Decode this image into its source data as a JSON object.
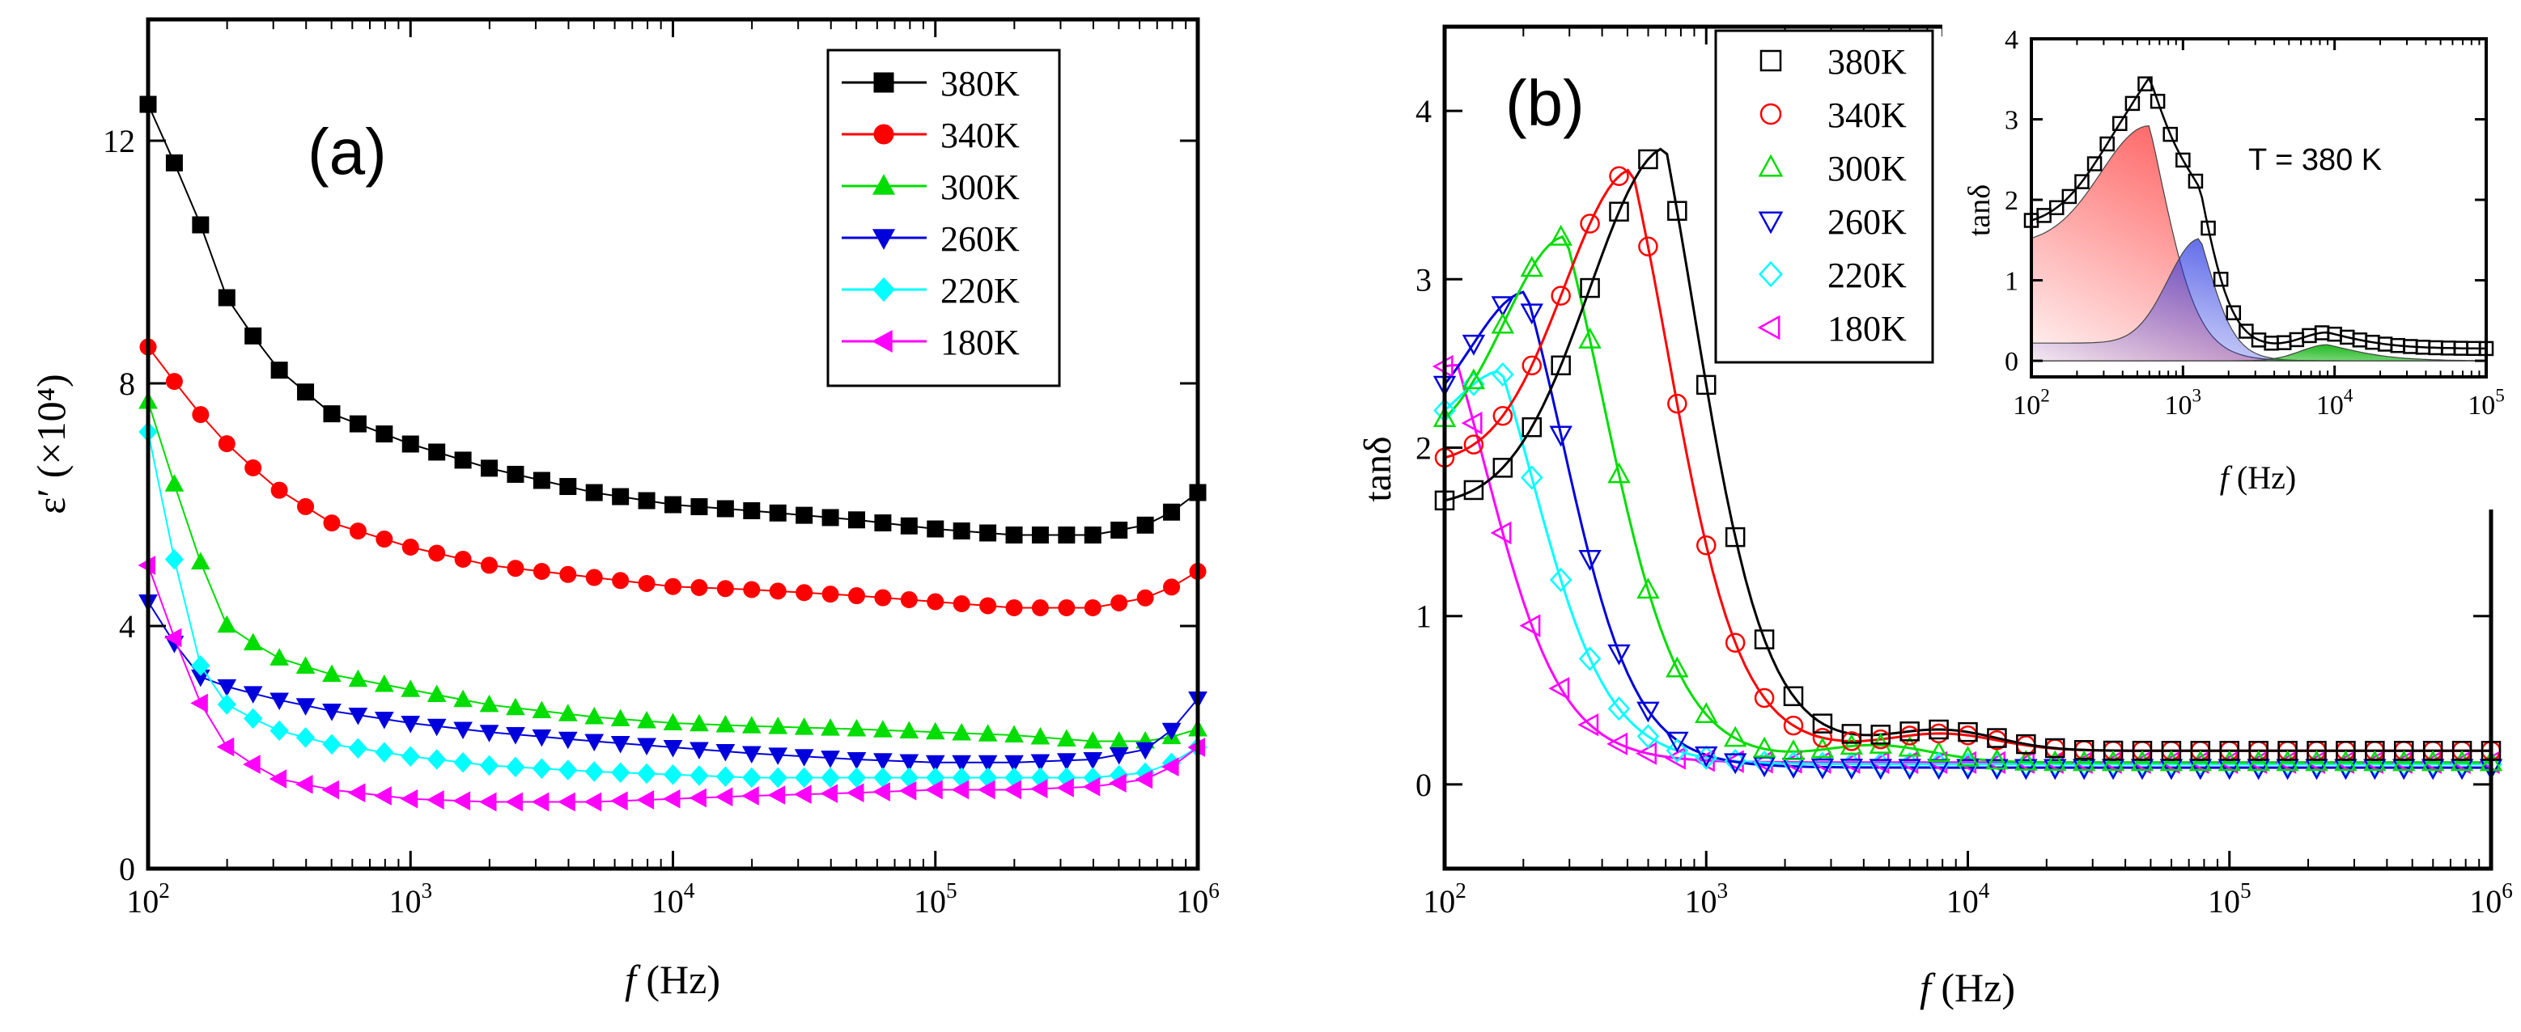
{
  "figure": {
    "panel_a_label": "(a)",
    "panel_b_label": "(b)",
    "inset_annotation": "T = 380 K"
  },
  "chart_data": [
    {
      "id": "a",
      "type": "line",
      "title": "(a)",
      "xlabel_italic": "f",
      "xlabel_rest": " (Hz)",
      "ylabel": "ε′ (×10⁴)",
      "xscale": "log",
      "xlim": [
        100,
        1000000
      ],
      "ylim": [
        0,
        14
      ],
      "xticks": [
        {
          "value": 100,
          "base": "10",
          "exp": "2"
        },
        {
          "value": 1000,
          "base": "10",
          "exp": "3"
        },
        {
          "value": 10000,
          "base": "10",
          "exp": "4"
        },
        {
          "value": 100000,
          "base": "10",
          "exp": "5"
        },
        {
          "value": 1000000,
          "base": "10",
          "exp": "6"
        }
      ],
      "yticks": [
        {
          "value": 0,
          "label": "0"
        },
        {
          "value": 4,
          "label": "4"
        },
        {
          "value": 8,
          "label": "8"
        },
        {
          "value": 12,
          "label": "12"
        }
      ],
      "legend_position": "top-right",
      "x": [
        100,
        150,
        200,
        300,
        500,
        1000,
        2000,
        5000,
        10000,
        20000,
        50000,
        100000,
        200000,
        400000,
        700000,
        1000000
      ],
      "series": [
        {
          "name": "380K",
          "color": "#000000",
          "marker": "square",
          "values": [
            12.6,
            10.9,
            9.4,
            8.3,
            7.5,
            7.0,
            6.6,
            6.2,
            6.0,
            5.9,
            5.75,
            5.6,
            5.5,
            5.5,
            5.7,
            6.2
          ]
        },
        {
          "name": "340K",
          "color": "#ff0000",
          "marker": "circle",
          "values": [
            8.6,
            7.6,
            7.0,
            6.3,
            5.7,
            5.3,
            5.0,
            4.8,
            4.65,
            4.6,
            4.5,
            4.4,
            4.3,
            4.3,
            4.5,
            4.9
          ]
        },
        {
          "name": "300K",
          "color": "#00dd00",
          "marker": "triangle-up",
          "values": [
            7.7,
            5.3,
            4.0,
            3.5,
            3.2,
            2.95,
            2.7,
            2.5,
            2.4,
            2.35,
            2.3,
            2.25,
            2.2,
            2.1,
            2.1,
            2.3
          ]
        },
        {
          "name": "260K",
          "color": "#0000dd",
          "marker": "triangle-down",
          "values": [
            4.4,
            3.2,
            3.0,
            2.8,
            2.6,
            2.4,
            2.25,
            2.1,
            2.0,
            1.9,
            1.8,
            1.75,
            1.75,
            1.8,
            2.0,
            2.8
          ]
        },
        {
          "name": "220K",
          "color": "#00ffff",
          "marker": "diamond",
          "values": [
            7.2,
            3.5,
            2.7,
            2.3,
            2.05,
            1.85,
            1.7,
            1.6,
            1.55,
            1.5,
            1.5,
            1.5,
            1.5,
            1.5,
            1.6,
            2.0
          ]
        },
        {
          "name": "180K",
          "color": "#ff00ff",
          "marker": "triangle-left",
          "values": [
            5.0,
            2.9,
            2.0,
            1.5,
            1.3,
            1.15,
            1.1,
            1.1,
            1.15,
            1.2,
            1.25,
            1.3,
            1.3,
            1.35,
            1.5,
            2.0
          ]
        }
      ]
    },
    {
      "id": "b",
      "type": "scatter",
      "title": "(b)",
      "xlabel_italic": "f",
      "xlabel_rest": " (Hz)",
      "ylabel": "tanδ",
      "xscale": "log",
      "xlim": [
        100,
        1000000
      ],
      "ylim": [
        -0.5,
        4.5
      ],
      "xticks": [
        {
          "value": 100,
          "base": "10",
          "exp": "2"
        },
        {
          "value": 1000,
          "base": "10",
          "exp": "3"
        },
        {
          "value": 10000,
          "base": "10",
          "exp": "4"
        },
        {
          "value": 100000,
          "base": "10",
          "exp": "5"
        },
        {
          "value": 1000000,
          "base": "10",
          "exp": "6"
        }
      ],
      "yticks": [
        {
          "value": 0,
          "label": "0"
        },
        {
          "value": 1,
          "label": "1"
        },
        {
          "value": 2,
          "label": "2"
        },
        {
          "value": 3,
          "label": "3"
        },
        {
          "value": 4,
          "label": "4"
        }
      ],
      "legend_position": "top-center",
      "series": [
        {
          "name": "380K",
          "color": "#000000",
          "marker": "square",
          "peak_f": 700,
          "peak": 3.72,
          "base": 1.65,
          "tail": 0.2,
          "w": 0.42,
          "dstart": 2.95,
          "dw": 0.14,
          "bump_f": 8000,
          "bump": 0.12
        },
        {
          "name": "340K",
          "color": "#ff0000",
          "marker": "circle",
          "peak_f": 520,
          "peak": 3.6,
          "base": 1.9,
          "tail": 0.2,
          "w": 0.37,
          "dstart": 2.85,
          "dw": 0.14,
          "bump_f": 8000,
          "bump": 0.1
        },
        {
          "name": "300K",
          "color": "#00dd00",
          "marker": "triangle-up",
          "peak_f": 290,
          "peak": 3.22,
          "base": 2.0,
          "tail": 0.13,
          "w": 0.33,
          "dstart": 2.6,
          "dw": 0.15,
          "bump_f": 4500,
          "bump": 0.1
        },
        {
          "name": "260K",
          "color": "#0000dd",
          "marker": "triangle-down",
          "peak_f": 205,
          "peak": 2.9,
          "base": 2.1,
          "tail": 0.1,
          "w": 0.3,
          "dstart": 2.45,
          "dw": 0.14,
          "bump_f": 0,
          "bump": 0
        },
        {
          "name": "220K",
          "color": "#00ffff",
          "marker": "diamond",
          "peak_f": 165,
          "peak": 2.42,
          "base": 2.0,
          "tail": 0.12,
          "w": 0.26,
          "dstart": 2.33,
          "dw": 0.15,
          "bump_f": 0,
          "bump": 0
        },
        {
          "name": "180K",
          "color": "#ff00ff",
          "marker": "triangle-left",
          "peak_f": 112,
          "peak": 2.45,
          "base": 2.4,
          "tail": 0.13,
          "w": 0.22,
          "dstart": 2.15,
          "dw": 0.15,
          "bump_f": 0,
          "bump": 0
        }
      ]
    },
    {
      "id": "b-inset",
      "type": "area",
      "xlabel_italic": "f",
      "xlabel_rest": " (Hz)",
      "ylabel": "tanδ",
      "xscale": "log",
      "xlim": [
        100,
        100000
      ],
      "ylim": [
        -0.2,
        4
      ],
      "annotation": "T = 380 K",
      "xticks": [
        {
          "value": 100,
          "base": "10",
          "exp": "2"
        },
        {
          "value": 1000,
          "base": "10",
          "exp": "3"
        },
        {
          "value": 10000,
          "base": "10",
          "exp": "4"
        },
        {
          "value": 100000,
          "base": "10",
          "exp": "5"
        }
      ],
      "yticks": [
        {
          "value": 0,
          "label": "0"
        },
        {
          "value": 1,
          "label": "1"
        },
        {
          "value": 2,
          "label": "2"
        },
        {
          "value": 3,
          "label": "3"
        },
        {
          "value": 4,
          "label": "4"
        }
      ],
      "components": [
        {
          "name": "red",
          "color": "#ff1a1a",
          "peak_f": 600,
          "peak": 2.92,
          "base": 1.45,
          "w": 0.45,
          "dstart": 2.85,
          "dw": 0.13
        },
        {
          "name": "blue",
          "color": "#2030e0",
          "peak_f": 1300,
          "peak": 1.52,
          "base": 0.22,
          "w": 0.3,
          "dstart": 3.15,
          "dw": 0.1
        },
        {
          "name": "green",
          "color": "#00b000",
          "peak_f": 9000,
          "peak": 0.2,
          "base": 0.0,
          "w": 0.25,
          "dstart": 4.0,
          "dw": 0.2
        }
      ],
      "fit_tail": 0.15
    }
  ]
}
